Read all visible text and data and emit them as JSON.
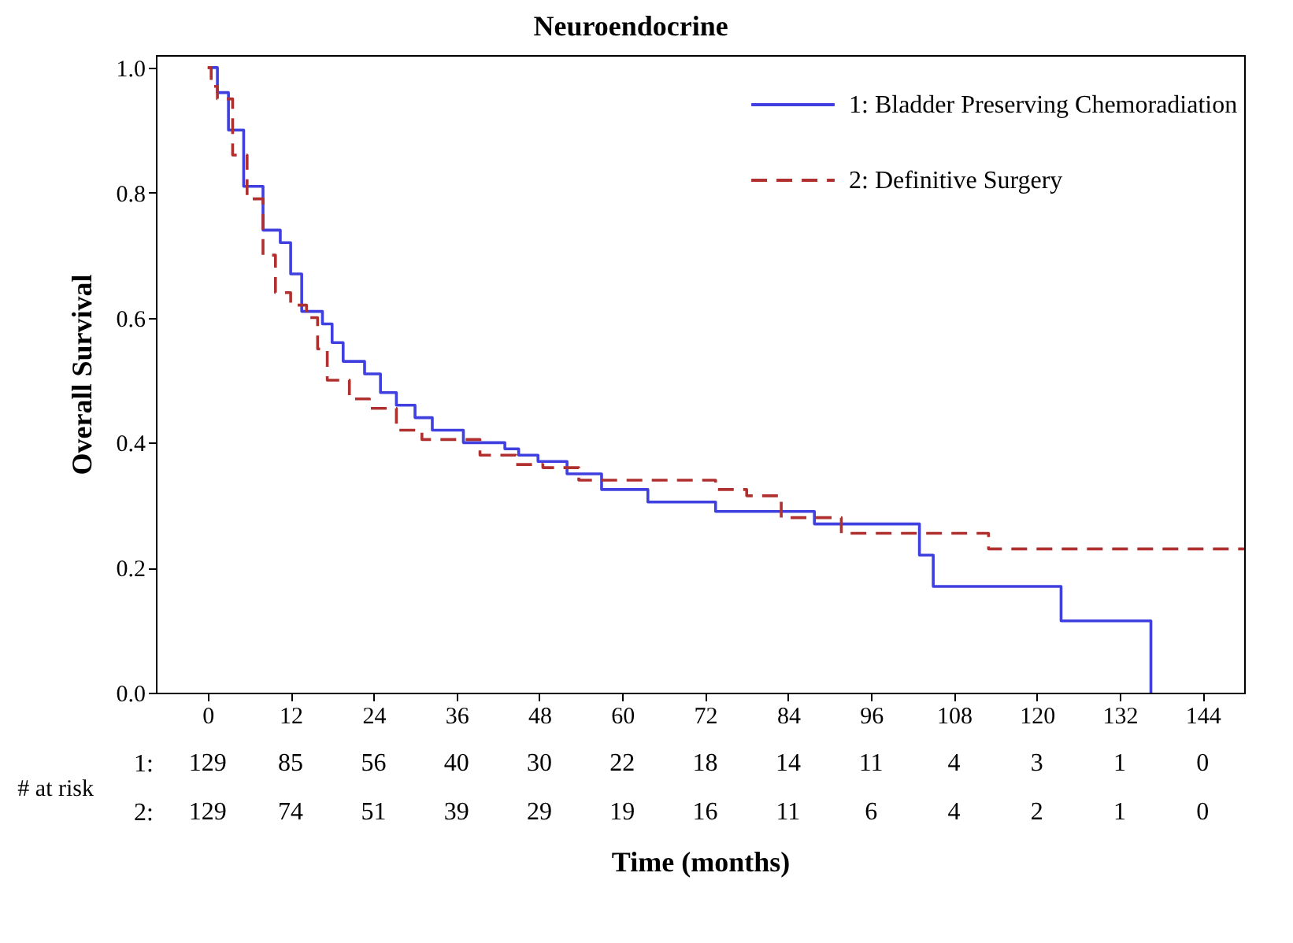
{
  "chart_data": {
    "type": "step",
    "title": "Neuroendocrine",
    "xlabel": "Time (months)",
    "ylabel": "Overall Survival",
    "xlim": [
      -7.5,
      150
    ],
    "xticks": [
      0,
      12,
      24,
      36,
      48,
      60,
      72,
      84,
      96,
      108,
      120,
      132,
      144
    ],
    "ylim": [
      0,
      1.02
    ],
    "yticks": [
      {
        "value": 0,
        "label": "0.0"
      },
      {
        "value": 0.2,
        "label": "0.2"
      },
      {
        "value": 0.4,
        "label": "0.4"
      },
      {
        "value": 0.6,
        "label": "0.6"
      },
      {
        "value": 0.8,
        "label": "0.8"
      },
      {
        "value": 1,
        "label": "1.0"
      }
    ],
    "grid": false,
    "legend": "top right",
    "marker": "none",
    "series": [
      {
        "name": "1: Bladder Preserving Chemoradiation",
        "color": "#4040e0",
        "line_style": "solid",
        "x": [
          0,
          1.4,
          3,
          5.2,
          8,
          10.5,
          12,
          13.6,
          16.6,
          18,
          19.6,
          22.7,
          25,
          27.3,
          30,
          32.5,
          37,
          43,
          45,
          47.8,
          52,
          57,
          63.7,
          73.5,
          87.8,
          103,
          105,
          123.5,
          136.5
        ],
        "values": [
          1.0,
          0.96,
          0.9,
          0.81,
          0.74,
          0.72,
          0.67,
          0.61,
          0.59,
          0.56,
          0.53,
          0.51,
          0.48,
          0.46,
          0.44,
          0.42,
          0.4,
          0.39,
          0.38,
          0.37,
          0.35,
          0.325,
          0.305,
          0.29,
          0.27,
          0.22,
          0.17,
          0.115,
          0
        ]
      },
      {
        "name": "2: Definitive Surgery",
        "color": "#b03030",
        "line_style": "dashed",
        "x": [
          0,
          0.5,
          1.4,
          3.6,
          5.7,
          8,
          9.8,
          12,
          14.3,
          15.9,
          17.3,
          20.5,
          23.4,
          27.3,
          31,
          39.4,
          44.6,
          48.5,
          53.7,
          73.5,
          78,
          83,
          91.7,
          113,
          150
        ],
        "values": [
          1.0,
          0.97,
          0.95,
          0.86,
          0.79,
          0.7,
          0.64,
          0.62,
          0.6,
          0.55,
          0.5,
          0.47,
          0.455,
          0.42,
          0.405,
          0.38,
          0.365,
          0.36,
          0.34,
          0.325,
          0.315,
          0.28,
          0.255,
          0.23,
          0.23
        ]
      }
    ],
    "annotations": [
      "# at risk",
      "1:",
      "129",
      "85",
      "56",
      "40",
      "30",
      "22",
      "18",
      "14",
      "11",
      "4",
      "3",
      "1",
      "0",
      "2:",
      "129",
      "74",
      "51",
      "39",
      "29",
      "19",
      "16",
      "11",
      "6",
      "4",
      "2",
      "1",
      "0"
    ]
  }
}
